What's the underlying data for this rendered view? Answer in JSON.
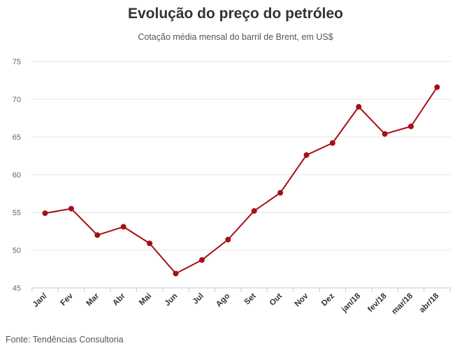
{
  "chart_data": {
    "type": "line",
    "title": "Evolução do preço do petróleo",
    "subtitle": "Cotação média mensal do barril de Brent, em US$",
    "source": "Fonte: Tendências Consultoria",
    "categories": [
      "Jan/",
      "Fev",
      "Mar",
      "Abr",
      "Mai",
      "Jun",
      "Jul",
      "Ago",
      "Set",
      "Out",
      "Nov",
      "Dez",
      "jan/18",
      "fev/18",
      "mar/18",
      "abr/18"
    ],
    "series": [
      {
        "values": [
          54.9,
          55.5,
          52.0,
          53.1,
          50.9,
          46.9,
          48.7,
          51.4,
          55.2,
          57.6,
          62.6,
          64.2,
          69.0,
          65.4,
          66.4,
          71.6
        ]
      }
    ],
    "ylim": [
      45,
      75
    ],
    "yticks": [
      45,
      50,
      55,
      60,
      65,
      70,
      75
    ],
    "grid": true,
    "xlabel": "",
    "ylabel": "",
    "colors": {
      "line": "#a50f15",
      "grid": "#e6e6e6",
      "axis": "#b9cde5"
    }
  }
}
